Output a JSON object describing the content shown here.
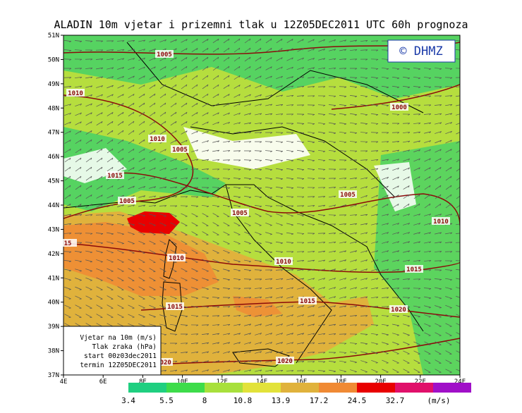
{
  "header": {
    "title": "ALADIN 10m vjetar i prizemni tlak u 12Z05DEC2011 UTC 60h prognoza"
  },
  "logo": "© DHMZ",
  "lat_labels": [
    "51N",
    "50N",
    "49N",
    "48N",
    "47N",
    "46N",
    "45N",
    "44N",
    "43N",
    "42N",
    "41N",
    "40N",
    "39N",
    "38N",
    "37N"
  ],
  "lon_labels": [
    "4E",
    "6E",
    "8E",
    "10E",
    "12E",
    "14E",
    "16E",
    "18E",
    "20E",
    "22E",
    "24E"
  ],
  "isobar_labels": [
    "1005",
    "1010",
    "1000",
    "1010",
    "1005",
    "1015",
    "1005",
    "1005",
    "1005",
    "1010",
    "15",
    "1010",
    "1010",
    "1015",
    "1015",
    "1015",
    "1020",
    "1020",
    "1020"
  ],
  "legend_box": [
    "Vjetar na 10m (m/s)",
    "Tlak zraka (hPa)",
    "start 00z03dec2011",
    "termin 12Z05DEC2011"
  ],
  "colorbar": {
    "values": [
      3.4,
      5.5,
      8,
      10.8,
      13.9,
      17.2,
      24.5,
      32.7
    ],
    "colors": [
      "#1fcf80",
      "#3ddc4a",
      "#a8e03c",
      "#e2e23a",
      "#e0b23c",
      "#f08a34",
      "#e80000",
      "#e0106a"
    ],
    "top_color": "#a010c8",
    "unit": "(m/s)"
  }
}
